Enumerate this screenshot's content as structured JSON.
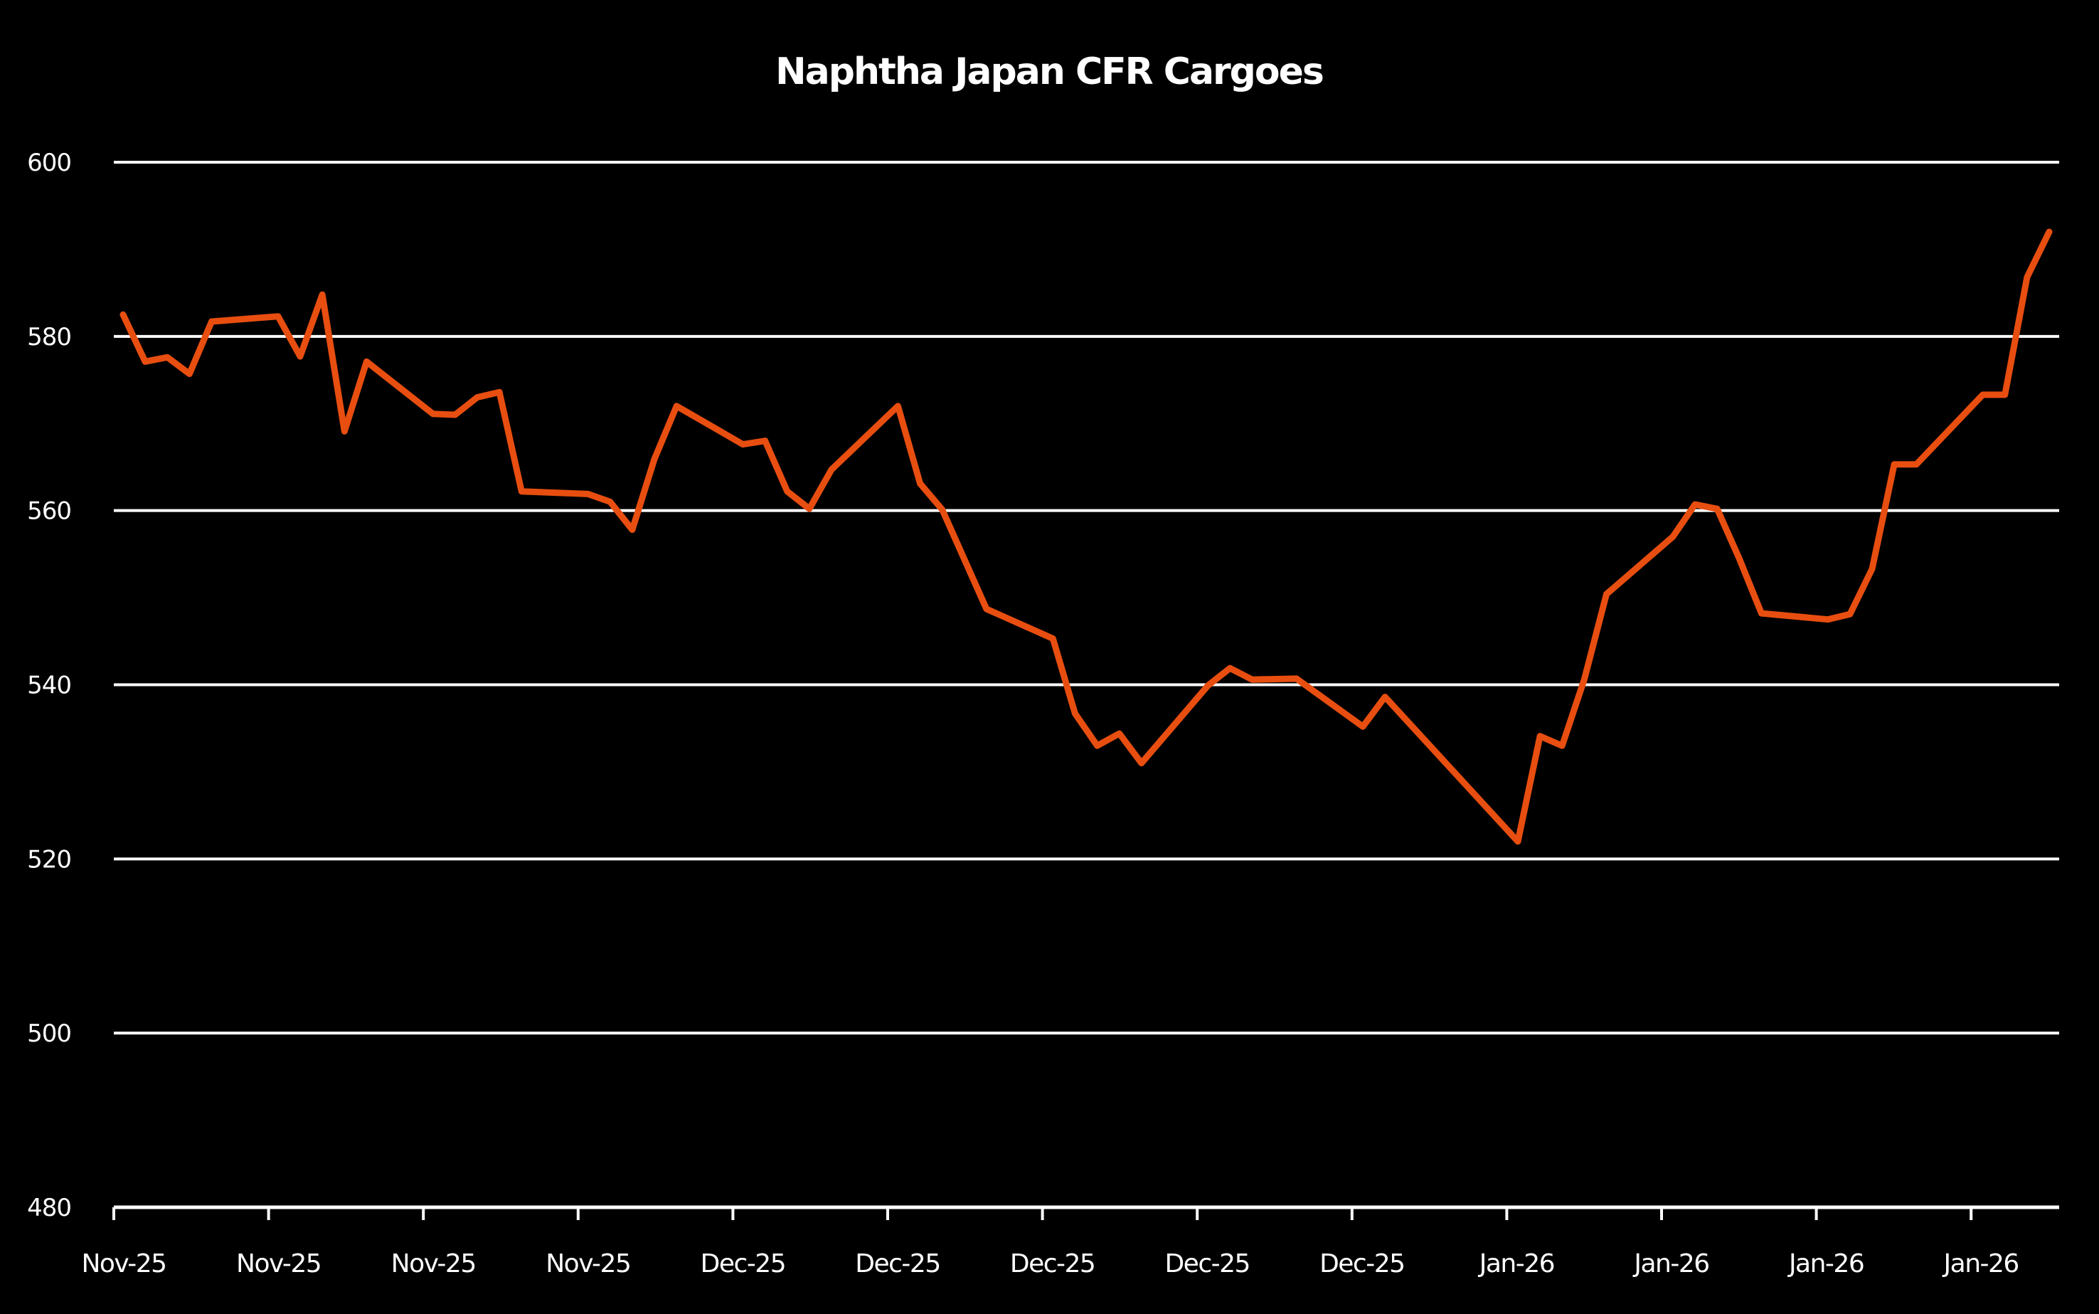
{
  "chart_data": {
    "type": "line",
    "title": "Naphtha Japan CFR Cargoes",
    "xlabel": "",
    "ylabel": "",
    "ylim": [
      480,
      600
    ],
    "yticks": [
      480,
      500,
      520,
      540,
      560,
      580,
      600
    ],
    "grid": true,
    "legend": "none",
    "xtick_labels": [
      "Nov-25",
      "Nov-25",
      "Nov-25",
      "Nov-25",
      "Dec-25",
      "Dec-25",
      "Dec-25",
      "Dec-25",
      "Dec-25",
      "Jan-26",
      "Jan-26",
      "Jan-26",
      "Jan-26"
    ],
    "series": [
      {
        "name": "Naphtha Japan CFR Cargoes",
        "color": "#E84E10",
        "x": [
          0,
          1,
          2,
          3,
          4,
          7,
          8,
          9,
          10,
          11,
          14,
          15,
          16,
          17,
          18,
          21,
          22,
          23,
          24,
          25,
          28,
          29,
          30,
          31,
          32,
          35,
          36,
          37,
          39,
          42,
          43,
          44,
          45,
          46,
          49,
          50,
          51,
          53,
          56,
          57,
          63,
          64,
          65,
          66,
          67,
          70,
          71,
          72,
          73,
          74,
          77,
          78,
          79,
          80,
          81,
          84,
          85,
          86,
          87
        ],
        "values": [
          582.5,
          577.1,
          577.6,
          575.7,
          581.7,
          582.3,
          577.7,
          584.8,
          569.1,
          577.1,
          571.1,
          571.0,
          573.0,
          573.6,
          562.2,
          561.9,
          561.0,
          557.8,
          565.9,
          572.0,
          567.6,
          568.0,
          562.2,
          560.2,
          564.7,
          572.0,
          563.1,
          560.1,
          548.7,
          545.3,
          536.7,
          533.0,
          534.4,
          531.0,
          539.9,
          541.9,
          540.6,
          540.7,
          535.2,
          538.6,
          522.0,
          534.1,
          533.0,
          540.6,
          550.4,
          557.0,
          560.7,
          560.2,
          554.5,
          548.2,
          547.5,
          548.1,
          553.3,
          565.3,
          565.3,
          573.3,
          573.3,
          586.8,
          592.0
        ]
      }
    ]
  },
  "colors": {
    "background": "#000000",
    "text": "#ffffff",
    "grid": "#ffffff",
    "line": "#E84E10"
  }
}
